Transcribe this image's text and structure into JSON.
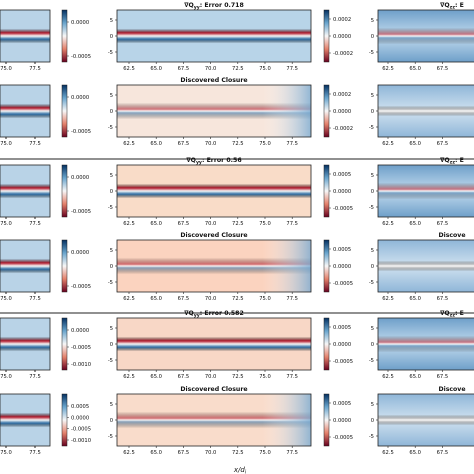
{
  "chart_data": [
    {
      "type": "heatmap",
      "rows": [
        {
          "left": {
            "xticks": [
              "75.0",
              "77.5"
            ],
            "cbar_ticks": [
              "0.0000",
              "-0.0005"
            ]
          },
          "center": {
            "title": "∇Q_yy: Error 0.718",
            "xticks": [
              "62.5",
              "65.0",
              "67.5",
              "70.0",
              "72.5",
              "75.0",
              "77.5"
            ],
            "yticks": [
              "5",
              "0",
              "-5"
            ],
            "cbar_ticks": [
              "0.0002",
              "0.0000",
              "-0.0002"
            ]
          },
          "right": {
            "title": "∇Q_zz: E",
            "xticks": [
              "62.5",
              "65.0",
              "67.5"
            ],
            "yticks": [
              "5",
              "0",
              "-5"
            ]
          }
        },
        {
          "left": {
            "xticks": [
              "75.0",
              "77.5"
            ],
            "cbar_ticks": [
              "0.0000",
              "-0.0005"
            ]
          },
          "center": {
            "title": "Discovered Closure",
            "xticks": [
              "62.5",
              "65.0",
              "67.5",
              "70.0",
              "72.5",
              "75.0",
              "77.5"
            ],
            "yticks": [
              "5",
              "0",
              "-5"
            ],
            "cbar_ticks": [
              "0.0002",
              "0.0000",
              "-0.0002"
            ]
          },
          "right": {
            "title": "",
            "xticks": [
              "62.5",
              "65.0",
              "67.5"
            ],
            "yticks": [
              "5",
              "0",
              "-5"
            ]
          }
        },
        {
          "left": {
            "xticks": [
              "75.0",
              "77.5"
            ],
            "cbar_ticks": [
              "0.0000",
              "-0.0005"
            ]
          },
          "center": {
            "title": "∇Q_yy: Error 0.56",
            "xticks": [
              "62.5",
              "65.0",
              "67.5",
              "70.0",
              "72.5",
              "75.0",
              "77.5"
            ],
            "yticks": [
              "5",
              "0",
              "-5"
            ],
            "cbar_ticks": [
              "0.0005",
              "0.0000",
              "-0.0005"
            ]
          },
          "right": {
            "title": "∇Q_zz: E",
            "xticks": [
              "62.5",
              "65.0",
              "67.5"
            ],
            "yticks": [
              "5",
              "0",
              "-5"
            ]
          }
        },
        {
          "left": {
            "xticks": [
              "75.0",
              "77.5"
            ],
            "cbar_ticks": [
              "0.0000",
              "-0.0005"
            ]
          },
          "center": {
            "title": "Discovered Closure",
            "xticks": [
              "62.5",
              "65.0",
              "67.5",
              "70.0",
              "72.5",
              "75.0",
              "77.5"
            ],
            "yticks": [
              "5",
              "0",
              "-5"
            ],
            "cbar_ticks": [
              "0.0005",
              "0.0000",
              "-0.0005"
            ]
          },
          "right": {
            "title": "Discove",
            "xticks": [
              "62.5",
              "65.0",
              "67.5"
            ],
            "yticks": [
              "5",
              "0",
              "-5"
            ]
          }
        },
        {
          "left": {
            "xticks": [
              "75.0",
              "77.5"
            ],
            "cbar_ticks": [
              "0.0000",
              "-0.0005",
              "-0.0010"
            ]
          },
          "center": {
            "title": "∇Q_yy: Error 0.582",
            "xticks": [
              "62.5",
              "65.0",
              "67.5",
              "70.0",
              "72.5",
              "75.0",
              "77.5"
            ],
            "yticks": [
              "5",
              "0",
              "-5"
            ],
            "cbar_ticks": [
              "0.0005",
              "0.0000",
              "-0.0005"
            ]
          },
          "right": {
            "title": "∇Q_zz: E",
            "xticks": [
              "62.5",
              "65.0",
              "67.5"
            ],
            "yticks": [
              "5",
              "0",
              "-5"
            ]
          }
        },
        {
          "left": {
            "xticks": [
              "75.0",
              "77.5"
            ],
            "cbar_ticks": [
              "0.0005",
              "0.0000",
              "-0.0005",
              "-0.0010"
            ]
          },
          "center": {
            "title": "Discovered Closure",
            "xticks": [
              "62.5",
              "65.0",
              "67.5",
              "70.0",
              "72.5",
              "75.0",
              "77.5"
            ],
            "yticks": [
              "5",
              "0",
              "-5"
            ],
            "cbar_ticks": [
              "0.0005",
              "0.0000",
              "-0.0005"
            ]
          },
          "right": {
            "title": "Discove",
            "xticks": [
              "62.5",
              "65.0",
              "67.5"
            ],
            "yticks": [
              "5",
              "0",
              "-5"
            ]
          }
        }
      ],
      "xlabel": "x/d_i",
      "colormap": {
        "positive": "#2f6fa6",
        "negative": "#b2182b",
        "zero": "#f7f7f7"
      },
      "center_background": [
        "#b8d4e8",
        "#f7e6dc",
        "#f9dcc8",
        "#fbd3bf",
        "#f8d7c6",
        "#f9dccb"
      ]
    }
  ]
}
